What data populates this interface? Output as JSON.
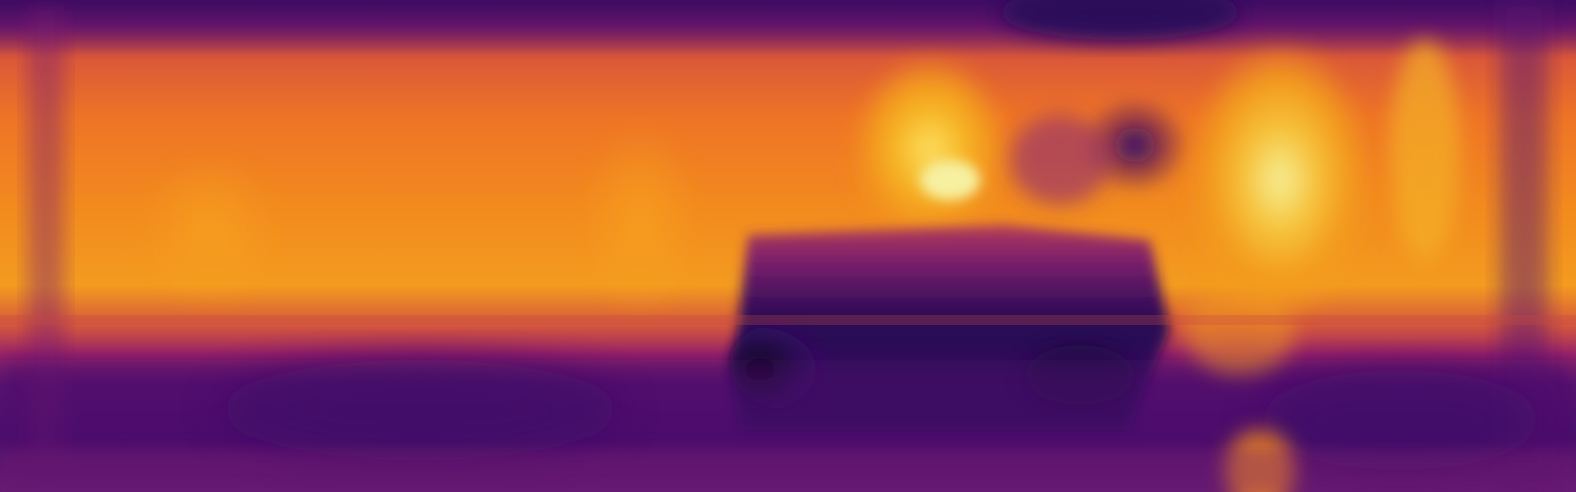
{
  "image": {
    "colormap": "inferno",
    "palette": {
      "black": "#050312",
      "deep_purple": "#2b0b5a",
      "purple": "#4b0c6b",
      "magenta": "#8e1f6f",
      "red": "#c63b4a",
      "orange": "#f07f1d",
      "yellow_orange": "#f6a61d",
      "pale_yellow": "#f5f0a0"
    }
  }
}
